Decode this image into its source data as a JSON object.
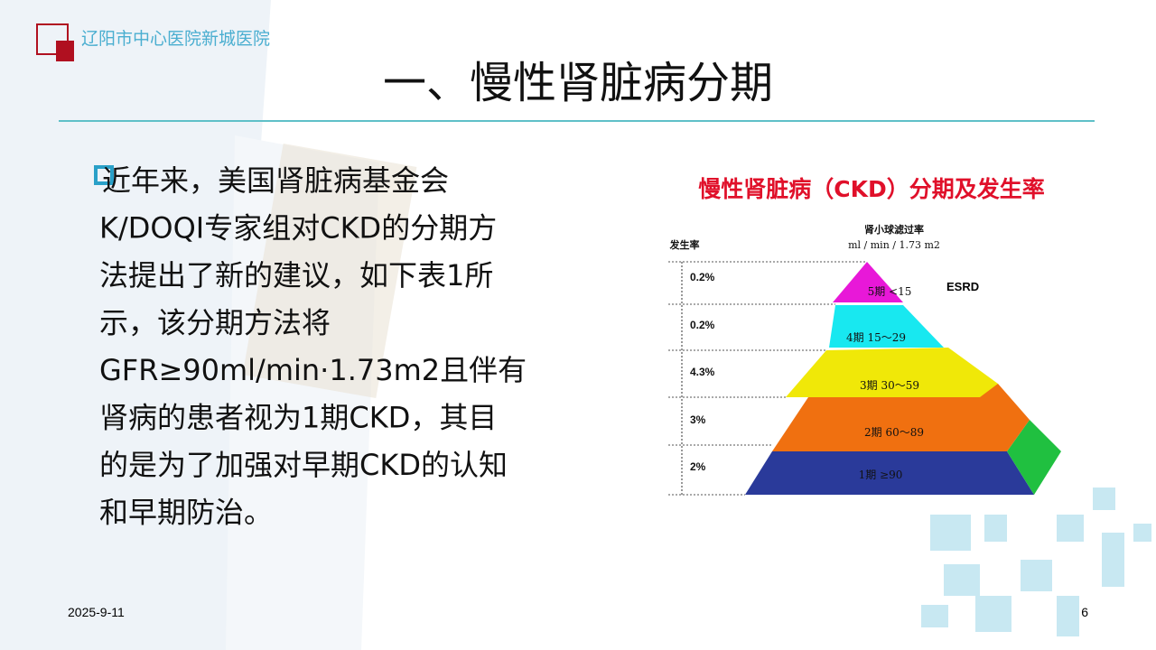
{
  "header": {
    "organization": "辽阳市中心医院新城医院",
    "title": "一、慢性肾脏病分期"
  },
  "body": {
    "lines": [
      "近年来，美国肾脏病基金会",
      "K/DOQI专家组对CKD的分期方",
      "法提出了新的建议，如下表1所",
      "示，该分期方法将",
      "GFR≥90ml/min·1.73m2且伴有",
      "肾病的患者视为1期CKD，其目",
      "的是为了加强对早期CKD的认知",
      "和早期防治。"
    ]
  },
  "figure": {
    "title": "慢性肾脏病（CKD）分期及发生率",
    "left_label": "发生率",
    "top_label": "肾小球滤过率",
    "top_unit": "ml / min / 1.73 m2",
    "esrd": "ESRD",
    "levels": [
      {
        "stage": "5期  <15",
        "rate": "0.2%"
      },
      {
        "stage": "4期  15～29",
        "rate": "0.2%"
      },
      {
        "stage": "3期   30～59",
        "rate": "4.3%"
      },
      {
        "stage": "2期   60～89",
        "rate": "3%"
      },
      {
        "stage": "1期   ≥90",
        "rate": "2%"
      }
    ]
  },
  "footer": {
    "date": "2025-9-11",
    "page": "6"
  }
}
